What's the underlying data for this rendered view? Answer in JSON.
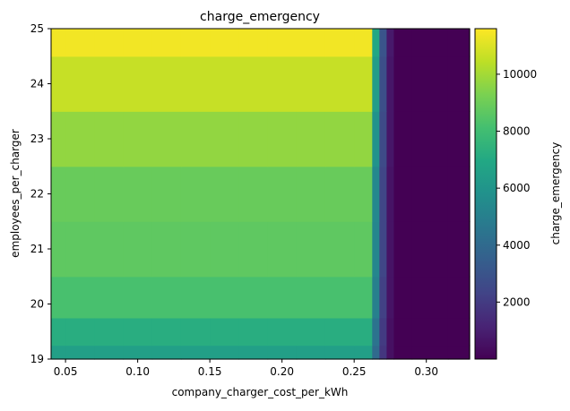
{
  "chart_data": {
    "type": "heatmap",
    "title": "charge_emergency",
    "xlabel": "company_charger_cost_per_kWh",
    "ylabel": "employees_per_charger",
    "xlim": [
      0.04,
      0.33
    ],
    "ylim": [
      19,
      25
    ],
    "xticks": [
      0.05,
      0.1,
      0.15,
      0.2,
      0.25,
      0.3
    ],
    "xtick_labels": [
      "0.05",
      "0.10",
      "0.15",
      "0.20",
      "0.25",
      "0.30"
    ],
    "yticks": [
      19,
      20,
      21,
      22,
      23,
      24,
      25
    ],
    "ytick_labels": [
      "19",
      "20",
      "21",
      "22",
      "23",
      "24",
      "25"
    ],
    "colormap": "viridis",
    "colorbar": {
      "label": "charge_emergency",
      "range": [
        0,
        11600
      ],
      "ticks": [
        2000,
        4000,
        6000,
        8000,
        10000
      ],
      "tick_labels": [
        "2000",
        "4000",
        "6000",
        "8000",
        "10000"
      ]
    },
    "x": [
      0.04,
      0.06,
      0.08,
      0.1,
      0.12,
      0.14,
      0.16,
      0.18,
      0.2,
      0.22,
      0.24,
      0.26,
      0.265,
      0.27,
      0.275,
      0.28,
      0.3,
      0.33
    ],
    "y": [
      19,
      19.5,
      20,
      21,
      22,
      23,
      24,
      25
    ],
    "z": [
      [
        6500,
        6500,
        6500,
        6500,
        6500,
        6500,
        6500,
        6500,
        6500,
        6500,
        6500,
        6500,
        4000,
        1800,
        500,
        0,
        0,
        0
      ],
      [
        7200,
        7200,
        7200,
        7200,
        7200,
        7200,
        7200,
        7200,
        7200,
        7200,
        7200,
        7200,
        4400,
        2000,
        500,
        0,
        0,
        0
      ],
      [
        8200,
        8200,
        8200,
        8200,
        8200,
        8200,
        8200,
        8200,
        8200,
        8200,
        8200,
        8200,
        5000,
        2200,
        600,
        0,
        0,
        0
      ],
      [
        8700,
        8700,
        8700,
        8700,
        8700,
        8700,
        8700,
        8700,
        8700,
        8700,
        8700,
        8700,
        5300,
        2400,
        600,
        0,
        0,
        0
      ],
      [
        8900,
        8900,
        8900,
        8900,
        8900,
        8900,
        8900,
        8900,
        8900,
        8900,
        8900,
        8900,
        5400,
        2400,
        600,
        0,
        0,
        0
      ],
      [
        9700,
        9700,
        9700,
        9700,
        9700,
        9700,
        9700,
        9700,
        9700,
        9700,
        9700,
        9700,
        5900,
        2600,
        700,
        0,
        0,
        0
      ],
      [
        10600,
        10600,
        10600,
        10600,
        10600,
        10600,
        10600,
        10600,
        10600,
        10600,
        10600,
        10600,
        6400,
        2800,
        700,
        0,
        0,
        0
      ],
      [
        11400,
        11400,
        11400,
        11400,
        11400,
        11400,
        11400,
        11400,
        11400,
        11400,
        11400,
        11400,
        6900,
        3000,
        800,
        0,
        0,
        0
      ]
    ]
  }
}
